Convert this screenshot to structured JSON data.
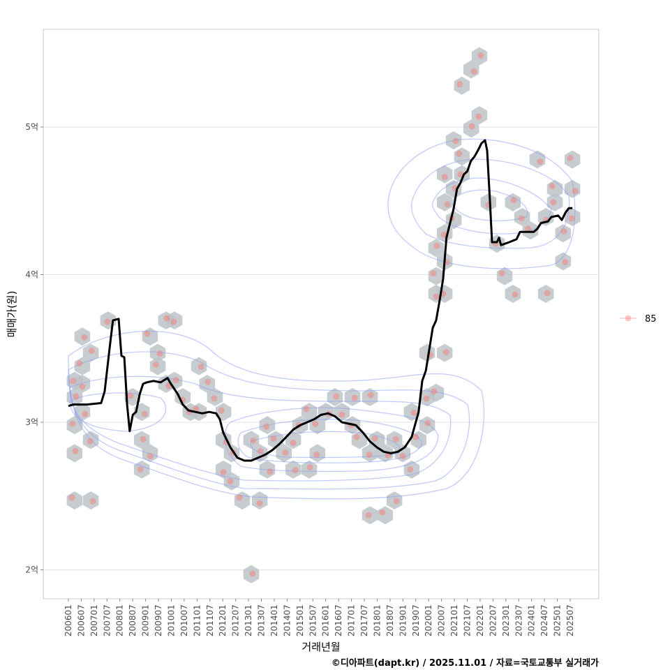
{
  "chart_data": {
    "type": "line",
    "title": "",
    "xlabel": "거래년월",
    "ylabel": "매매가(원)",
    "caption": "©디아파트(dapt.kr) / 2025.11.01 / 자료=국토교통부 실거래가",
    "x_range": [
      2005.2,
      2026.3
    ],
    "y_range": [
      1.82,
      5.68
    ],
    "y_ticks": [
      {
        "value": 2,
        "label": "2억"
      },
      {
        "value": 3,
        "label": "3억"
      },
      {
        "value": 4,
        "label": "4억"
      },
      {
        "value": 5,
        "label": "5억"
      }
    ],
    "x_ticks": [
      "200601",
      "200607",
      "200701",
      "200707",
      "200801",
      "200807",
      "200901",
      "200907",
      "201001",
      "201007",
      "201101",
      "201107",
      "201201",
      "201207",
      "201301",
      "201307",
      "201401",
      "201407",
      "201501",
      "201507",
      "201601",
      "201607",
      "201701",
      "201707",
      "201801",
      "201807",
      "201901",
      "201907",
      "202001",
      "202007",
      "202101",
      "202107",
      "202201",
      "202207",
      "202301",
      "202307",
      "202401",
      "202407",
      "202501",
      "202507"
    ],
    "grid": true,
    "legend": {
      "position": "right",
      "entries": [
        {
          "label": "85",
          "color": "#f8766d"
        }
      ]
    },
    "colors": {
      "line": "#000000",
      "points": "#f8766d",
      "hex": "#bcc3c8",
      "contour": "#8fa3f0"
    },
    "series": [
      {
        "name": "85 moving average",
        "points": [
          [
            2006.0,
            3.11
          ],
          [
            2006.2,
            3.12
          ],
          [
            2006.73,
            3.12
          ],
          [
            2007.27,
            3.13
          ],
          [
            2007.41,
            3.21
          ],
          [
            2007.6,
            3.5
          ],
          [
            2007.73,
            3.69
          ],
          [
            2007.95,
            3.7
          ],
          [
            2008.06,
            3.45
          ],
          [
            2008.17,
            3.44
          ],
          [
            2008.28,
            3.12
          ],
          [
            2008.38,
            2.94
          ],
          [
            2008.5,
            3.05
          ],
          [
            2008.63,
            3.07
          ],
          [
            2008.77,
            3.19
          ],
          [
            2008.9,
            3.26
          ],
          [
            2009.04,
            3.27
          ],
          [
            2009.31,
            3.28
          ],
          [
            2009.58,
            3.27
          ],
          [
            2009.85,
            3.3
          ],
          [
            2009.98,
            3.26
          ],
          [
            2010.25,
            3.19
          ],
          [
            2010.44,
            3.12
          ],
          [
            2010.66,
            3.08
          ],
          [
            2010.93,
            3.07
          ],
          [
            2011.2,
            3.06
          ],
          [
            2011.47,
            3.07
          ],
          [
            2011.74,
            3.06
          ],
          [
            2011.88,
            3.02
          ],
          [
            2012.01,
            2.93
          ],
          [
            2012.29,
            2.83
          ],
          [
            2012.56,
            2.76
          ],
          [
            2012.83,
            2.74
          ],
          [
            2013.1,
            2.74
          ],
          [
            2013.37,
            2.76
          ],
          [
            2013.64,
            2.78
          ],
          [
            2013.91,
            2.81
          ],
          [
            2014.18,
            2.85
          ],
          [
            2014.46,
            2.9
          ],
          [
            2014.73,
            2.95
          ],
          [
            2015.0,
            2.98
          ],
          [
            2015.27,
            3.0
          ],
          [
            2015.54,
            3.02
          ],
          [
            2015.81,
            3.05
          ],
          [
            2016.08,
            3.06
          ],
          [
            2016.35,
            3.04
          ],
          [
            2016.62,
            3.0
          ],
          [
            2016.89,
            2.99
          ],
          [
            2017.16,
            2.98
          ],
          [
            2017.44,
            2.93
          ],
          [
            2017.71,
            2.87
          ],
          [
            2017.98,
            2.83
          ],
          [
            2018.25,
            2.8
          ],
          [
            2018.52,
            2.79
          ],
          [
            2018.79,
            2.8
          ],
          [
            2019.06,
            2.83
          ],
          [
            2019.33,
            2.9
          ],
          [
            2019.6,
            3.07
          ],
          [
            2019.74,
            3.28
          ],
          [
            2019.88,
            3.35
          ],
          [
            2020.15,
            3.64
          ],
          [
            2020.28,
            3.69
          ],
          [
            2020.42,
            3.83
          ],
          [
            2020.55,
            3.97
          ],
          [
            2020.68,
            4.25
          ],
          [
            2020.82,
            4.35
          ],
          [
            2020.95,
            4.44
          ],
          [
            2021.09,
            4.58
          ],
          [
            2021.22,
            4.62
          ],
          [
            2021.36,
            4.68
          ],
          [
            2021.49,
            4.7
          ],
          [
            2021.63,
            4.77
          ],
          [
            2021.77,
            4.8
          ],
          [
            2021.9,
            4.84
          ],
          [
            2022.04,
            4.89
          ],
          [
            2022.18,
            4.91
          ],
          [
            2022.26,
            4.84
          ],
          [
            2022.37,
            4.49
          ],
          [
            2022.45,
            4.22
          ],
          [
            2022.64,
            4.22
          ],
          [
            2022.72,
            4.25
          ],
          [
            2022.8,
            4.2
          ],
          [
            2023.12,
            4.22
          ],
          [
            2023.4,
            4.24
          ],
          [
            2023.54,
            4.29
          ],
          [
            2023.8,
            4.29
          ],
          [
            2024.07,
            4.29
          ],
          [
            2024.21,
            4.31
          ],
          [
            2024.35,
            4.35
          ],
          [
            2024.62,
            4.36
          ],
          [
            2024.75,
            4.39
          ],
          [
            2025.02,
            4.4
          ],
          [
            2025.16,
            4.37
          ],
          [
            2025.3,
            4.42
          ],
          [
            2025.43,
            4.45
          ],
          [
            2025.57,
            4.45
          ]
        ]
      }
    ],
    "hexbins": [
      [
        2006.24,
        2.47
      ],
      [
        2006.87,
        2.47
      ],
      [
        2006.24,
        2.79
      ],
      [
        2006.87,
        2.88
      ],
      [
        2006.24,
        2.98
      ],
      [
        2006.54,
        3.07
      ],
      [
        2006.24,
        3.17
      ],
      [
        2006.54,
        3.26
      ],
      [
        2006.24,
        3.28
      ],
      [
        2006.54,
        3.38
      ],
      [
        2006.54,
        3.58
      ],
      [
        2006.87,
        3.47
      ],
      [
        2007.54,
        3.69
      ],
      [
        2008.49,
        3.17
      ],
      [
        2008.85,
        3.07
      ],
      [
        2008.85,
        2.88
      ],
      [
        2009.17,
        2.79
      ],
      [
        2008.85,
        2.68
      ],
      [
        2009.17,
        3.58
      ],
      [
        2009.47,
        3.47
      ],
      [
        2009.79,
        3.69
      ],
      [
        2010.12,
        3.69
      ],
      [
        2009.47,
        3.38
      ],
      [
        2009.79,
        3.26
      ],
      [
        2010.12,
        3.28
      ],
      [
        2010.44,
        3.17
      ],
      [
        2010.74,
        3.07
      ],
      [
        2011.07,
        3.07
      ],
      [
        2011.07,
        3.38
      ],
      [
        2011.39,
        3.26
      ],
      [
        2011.69,
        3.17
      ],
      [
        2012.02,
        3.07
      ],
      [
        2012.02,
        2.88
      ],
      [
        2012.34,
        2.79
      ],
      [
        2012.02,
        2.68
      ],
      [
        2012.34,
        2.6
      ],
      [
        2012.75,
        2.47
      ],
      [
        2013.1,
        2.88
      ],
      [
        2013.43,
        2.79
      ],
      [
        2013.72,
        2.98
      ],
      [
        2014.05,
        2.88
      ],
      [
        2013.72,
        2.68
      ],
      [
        2014.37,
        2.79
      ],
      [
        2014.73,
        2.88
      ],
      [
        2015.0,
        2.98
      ],
      [
        2015.35,
        3.07
      ],
      [
        2014.73,
        2.68
      ],
      [
        2015.35,
        2.68
      ],
      [
        2015.67,
        2.79
      ],
      [
        2015.67,
        2.98
      ],
      [
        2016.0,
        3.07
      ],
      [
        2016.35,
        3.17
      ],
      [
        2016.62,
        3.07
      ],
      [
        2017.03,
        2.98
      ],
      [
        2017.3,
        2.88
      ],
      [
        2017.03,
        3.17
      ],
      [
        2017.71,
        3.17
      ],
      [
        2017.71,
        2.79
      ],
      [
        2017.98,
        2.88
      ],
      [
        2018.3,
        2.79
      ],
      [
        2018.66,
        2.88
      ],
      [
        2018.98,
        2.79
      ],
      [
        2019.33,
        2.68
      ],
      [
        2019.6,
        2.88
      ],
      [
        2019.33,
        3.07
      ],
      [
        2019.93,
        2.98
      ],
      [
        2019.93,
        3.17
      ],
      [
        2020.28,
        3.2
      ],
      [
        2019.93,
        3.47
      ],
      [
        2020.61,
        3.47
      ],
      [
        2020.28,
        3.87
      ],
      [
        2020.61,
        3.87
      ],
      [
        2020.28,
        3.99
      ],
      [
        2020.61,
        4.09
      ],
      [
        2020.28,
        4.18
      ],
      [
        2020.61,
        4.28
      ],
      [
        2020.96,
        4.37
      ],
      [
        2020.61,
        4.49
      ],
      [
        2020.96,
        4.58
      ],
      [
        2020.61,
        4.68
      ],
      [
        2021.28,
        4.68
      ],
      [
        2021.28,
        4.8
      ],
      [
        2020.96,
        4.91
      ],
      [
        2021.64,
        4.99
      ],
      [
        2021.96,
        5.08
      ],
      [
        2021.28,
        5.28
      ],
      [
        2021.64,
        5.39
      ],
      [
        2021.96,
        5.48
      ],
      [
        2022.31,
        4.49
      ],
      [
        2022.64,
        4.21
      ],
      [
        2022.94,
        3.99
      ],
      [
        2023.26,
        3.87
      ],
      [
        2023.26,
        4.49
      ],
      [
        2023.62,
        4.39
      ],
      [
        2023.94,
        4.3
      ],
      [
        2024.21,
        4.78
      ],
      [
        2024.54,
        3.87
      ],
      [
        2024.54,
        4.39
      ],
      [
        2024.89,
        4.49
      ],
      [
        2024.89,
        4.58
      ],
      [
        2025.21,
        4.09
      ],
      [
        2025.21,
        4.28
      ],
      [
        2025.57,
        4.39
      ],
      [
        2025.57,
        4.78
      ],
      [
        2025.57,
        4.58
      ],
      [
        2013.1,
        1.97
      ],
      [
        2013.43,
        2.47
      ],
      [
        2017.71,
        2.37
      ],
      [
        2018.3,
        2.37
      ],
      [
        2018.66,
        2.47
      ]
    ]
  }
}
